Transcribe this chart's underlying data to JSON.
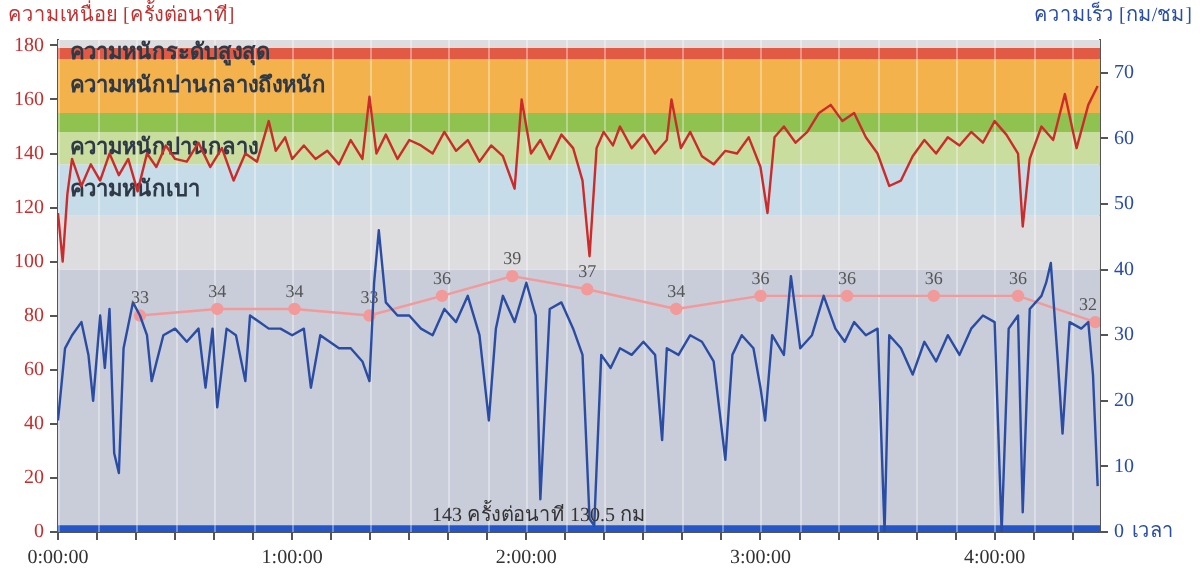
{
  "chart_data": {
    "type": "line",
    "ylabel": "ความเหนื่อย [ครั้งต่อนาที]",
    "y2label": "ความเร็ว [กม/ชม]",
    "xlabel": "เวลา",
    "xlim": [
      0,
      4.45
    ],
    "xticks": [
      {
        "value": 0,
        "label": "0:00:00"
      },
      {
        "value": 0.1667,
        "label": null
      },
      {
        "value": 0.3333,
        "label": null
      },
      {
        "value": 0.5,
        "label": null
      },
      {
        "value": 0.6667,
        "label": null
      },
      {
        "value": 0.8333,
        "label": null
      },
      {
        "value": 1,
        "label": "1:00:00"
      },
      {
        "value": 1.1667,
        "label": null
      },
      {
        "value": 1.3333,
        "label": null
      },
      {
        "value": 1.5,
        "label": null
      },
      {
        "value": 1.6667,
        "label": null
      },
      {
        "value": 1.8333,
        "label": null
      },
      {
        "value": 2,
        "label": "2:00:00"
      },
      {
        "value": 2.1667,
        "label": null
      },
      {
        "value": 2.3333,
        "label": null
      },
      {
        "value": 2.5,
        "label": null
      },
      {
        "value": 2.6667,
        "label": null
      },
      {
        "value": 2.8333,
        "label": null
      },
      {
        "value": 3,
        "label": "3:00:00"
      },
      {
        "value": 3.1667,
        "label": null
      },
      {
        "value": 3.3333,
        "label": null
      },
      {
        "value": 3.5,
        "label": null
      },
      {
        "value": 3.6667,
        "label": null
      },
      {
        "value": 3.8333,
        "label": null
      },
      {
        "value": 4,
        "label": "4:00:00"
      },
      {
        "value": 4.1667,
        "label": null
      },
      {
        "value": 4.3333,
        "label": null
      }
    ],
    "ylim": [
      0,
      182
    ],
    "yticks": [
      0,
      20,
      40,
      60,
      80,
      100,
      120,
      140,
      160,
      180
    ],
    "y2lim": [
      0,
      75
    ],
    "y2ticks": [
      0,
      10,
      20,
      30,
      40,
      50,
      60,
      70
    ],
    "grid": "x",
    "legend": false,
    "bands": [
      {
        "axis": "y",
        "from": 0,
        "to": 97,
        "color": "#c9ccd9"
      },
      {
        "axis": "y",
        "from": 97,
        "to": 117,
        "color": "#dddde0"
      },
      {
        "axis": "y",
        "from": 117,
        "to": 136,
        "color": "#c6dce8",
        "label": "ความหนักเบา"
      },
      {
        "axis": "y",
        "from": 136,
        "to": 148,
        "color": "#c9de9e",
        "label": "ความหนักปานกลาง"
      },
      {
        "axis": "y",
        "from": 148,
        "to": 155,
        "color": "#8fc24e"
      },
      {
        "axis": "y",
        "from": 155,
        "to": 175,
        "color": "#f4b24c",
        "label": "ความหนักปานกลางถึงหนัก"
      },
      {
        "axis": "y",
        "from": 175,
        "to": 179,
        "color": "#e25a44",
        "label": "ความหนักระดับสูงสุด"
      },
      {
        "axis": "y",
        "from": 179,
        "to": 182,
        "color": "#dddde0"
      },
      {
        "axis": "y",
        "from": 0,
        "to": 2.5,
        "color": "#2456c8"
      }
    ],
    "annotations": [
      "143 ครั้งต่อนาที 130.5 กม"
    ],
    "series": [
      {
        "color": "#cc2b2b",
        "axis": "y",
        "marker": "none",
        "x": [
          0,
          0.02,
          0.04,
          0.06,
          0.1,
          0.14,
          0.18,
          0.22,
          0.26,
          0.3,
          0.34,
          0.38,
          0.42,
          0.46,
          0.5,
          0.55,
          0.6,
          0.65,
          0.7,
          0.75,
          0.8,
          0.85,
          0.9,
          0.93,
          0.97,
          1,
          1.05,
          1.1,
          1.15,
          1.2,
          1.25,
          1.3,
          1.33,
          1.36,
          1.4,
          1.45,
          1.5,
          1.55,
          1.6,
          1.65,
          1.7,
          1.75,
          1.8,
          1.85,
          1.9,
          1.95,
          1.98,
          2.02,
          2.06,
          2.1,
          2.15,
          2.2,
          2.24,
          2.27,
          2.3,
          2.33,
          2.37,
          2.4,
          2.45,
          2.5,
          2.55,
          2.6,
          2.62,
          2.66,
          2.7,
          2.75,
          2.8,
          2.85,
          2.9,
          2.95,
          3,
          3.03,
          3.06,
          3.1,
          3.15,
          3.2,
          3.25,
          3.3,
          3.35,
          3.4,
          3.45,
          3.5,
          3.55,
          3.6,
          3.65,
          3.7,
          3.75,
          3.8,
          3.85,
          3.9,
          3.95,
          4,
          4.05,
          4.1,
          4.12,
          4.15,
          4.2,
          4.25,
          4.3,
          4.35,
          4.4,
          4.44
        ],
        "values": [
          118,
          100,
          125,
          138,
          128,
          136,
          130,
          140,
          132,
          138,
          126,
          140,
          135,
          143,
          138,
          137,
          144,
          135,
          142,
          130,
          140,
          137,
          152,
          141,
          146,
          138,
          143,
          138,
          141,
          136,
          145,
          138,
          161,
          140,
          147,
          138,
          145,
          143,
          140,
          148,
          141,
          145,
          137,
          143,
          139,
          127,
          160,
          140,
          145,
          138,
          147,
          142,
          130,
          102,
          142,
          148,
          143,
          150,
          142,
          147,
          140,
          145,
          160,
          142,
          148,
          139,
          136,
          141,
          140,
          146,
          135,
          118,
          146,
          150,
          144,
          148,
          155,
          158,
          152,
          155,
          146,
          140,
          128,
          130,
          139,
          145,
          140,
          146,
          143,
          148,
          144,
          152,
          147,
          140,
          113,
          138,
          150,
          145,
          162,
          142,
          158,
          165
        ]
      },
      {
        "color": "#2a4ca3",
        "axis": "y2",
        "marker": "none",
        "x": [
          0,
          0.03,
          0.06,
          0.1,
          0.13,
          0.15,
          0.18,
          0.2,
          0.22,
          0.24,
          0.26,
          0.28,
          0.32,
          0.35,
          0.38,
          0.4,
          0.45,
          0.5,
          0.55,
          0.6,
          0.63,
          0.66,
          0.68,
          0.72,
          0.76,
          0.8,
          0.82,
          0.86,
          0.9,
          0.95,
          1,
          1.05,
          1.08,
          1.12,
          1.16,
          1.2,
          1.25,
          1.3,
          1.33,
          1.35,
          1.37,
          1.4,
          1.45,
          1.5,
          1.55,
          1.6,
          1.65,
          1.7,
          1.75,
          1.8,
          1.84,
          1.87,
          1.9,
          1.95,
          2,
          2.04,
          2.06,
          2.1,
          2.15,
          2.2,
          2.24,
          2.27,
          2.29,
          2.32,
          2.36,
          2.4,
          2.45,
          2.5,
          2.55,
          2.58,
          2.6,
          2.65,
          2.7,
          2.75,
          2.8,
          2.85,
          2.88,
          2.92,
          2.97,
          3,
          3.02,
          3.05,
          3.1,
          3.13,
          3.17,
          3.22,
          3.27,
          3.32,
          3.36,
          3.4,
          3.45,
          3.5,
          3.53,
          3.55,
          3.6,
          3.65,
          3.7,
          3.75,
          3.8,
          3.85,
          3.9,
          3.95,
          4,
          4.03,
          4.06,
          4.1,
          4.12,
          4.15,
          4.2,
          4.22,
          4.24,
          4.27,
          4.29,
          4.32,
          4.37,
          4.4,
          4.42,
          4.44
        ],
        "values": [
          17,
          28,
          30,
          32,
          27,
          20,
          33,
          25,
          34,
          12,
          9,
          28,
          35,
          33,
          30,
          23,
          30,
          31,
          29,
          31,
          22,
          31,
          19,
          31,
          30,
          23,
          33,
          32,
          31,
          31,
          30,
          31,
          22,
          30,
          29,
          28,
          28,
          26,
          23,
          38,
          46,
          35,
          33,
          33,
          31,
          30,
          34,
          32,
          36,
          30,
          17,
          31,
          36,
          32,
          38,
          33,
          5,
          34,
          35,
          31,
          27,
          2,
          1,
          27,
          25,
          28,
          27,
          29,
          27,
          14,
          28,
          27,
          30,
          29,
          26,
          11,
          27,
          30,
          28,
          22,
          17,
          30,
          27,
          39,
          28,
          30,
          36,
          31,
          29,
          32,
          30,
          31,
          0,
          30,
          28,
          24,
          29,
          26,
          30,
          27,
          31,
          33,
          32,
          0,
          31,
          33,
          3,
          34,
          36,
          38,
          41,
          26,
          15,
          32,
          31,
          32,
          24,
          7
        ]
      },
      {
        "color": "#f29a9a",
        "axis": "y2",
        "marker": "circle",
        "x": [
          0.35,
          0.68,
          1.01,
          1.33,
          1.64,
          1.94,
          2.26,
          2.64,
          3,
          3.37,
          3.74,
          4.1,
          4.43
        ],
        "values": [
          33,
          34,
          34,
          33,
          36,
          39,
          37,
          34,
          36,
          36,
          36,
          36,
          32
        ],
        "value_labels": [
          "33",
          "34",
          "34",
          "33",
          "36",
          "39",
          "37",
          "34",
          "36",
          "36",
          "36",
          "36",
          "32"
        ]
      }
    ]
  }
}
